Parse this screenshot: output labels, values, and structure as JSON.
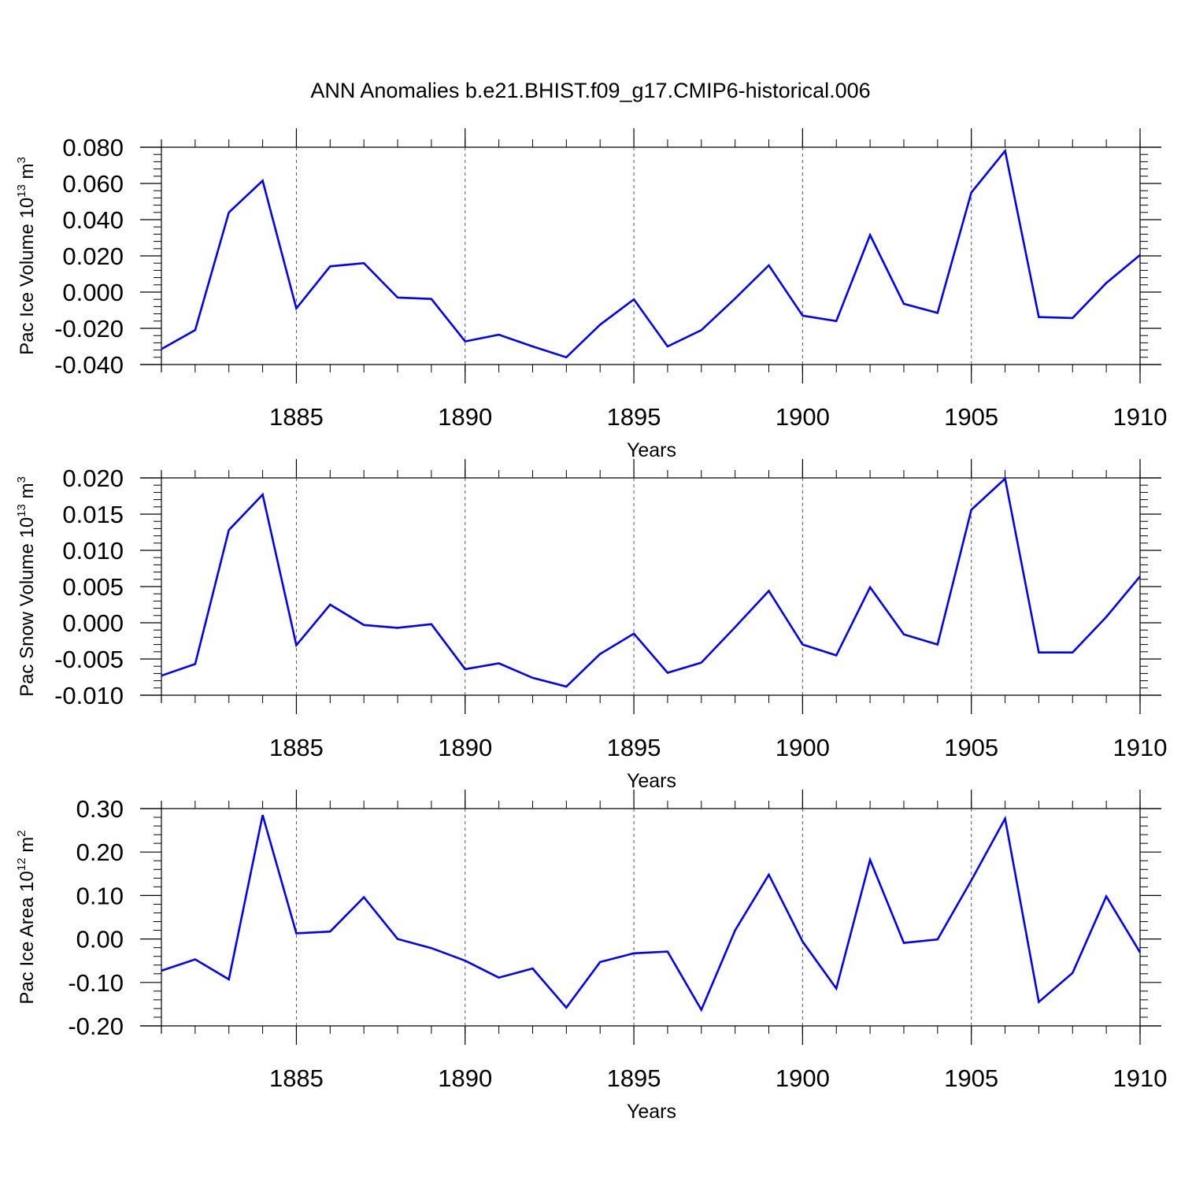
{
  "title": "ANN Anomalies b.e21.BHIST.f09_g17.CMIP6-historical.006",
  "chart_data": [
    {
      "type": "line",
      "ylabel": {
        "main": "Pac Ice Volume 10",
        "exp": "13",
        "unit": " m",
        "unit_exp": "3"
      },
      "xlabel": "Years",
      "xlim": [
        1881,
        1910
      ],
      "ylim": [
        -0.04,
        0.08
      ],
      "yticks": [
        -0.04,
        -0.02,
        0.0,
        0.02,
        0.04,
        0.06,
        0.08
      ],
      "ytick_labels": [
        "-0.040",
        "-0.020",
        "0.000",
        "0.020",
        "0.040",
        "0.060",
        "0.080"
      ],
      "xticks": [
        1885,
        1890,
        1895,
        1900,
        1905,
        1910
      ],
      "xtick_labels": [
        "1885",
        "1890",
        "1895",
        "1900",
        "1905",
        "1910"
      ],
      "line_color": "#0000ff",
      "x": [
        1881,
        1882,
        1883,
        1884,
        1885,
        1886,
        1887,
        1888,
        1889,
        1890,
        1891,
        1892,
        1893,
        1894,
        1895,
        1896,
        1897,
        1898,
        1899,
        1900,
        1901,
        1902,
        1903,
        1904,
        1905,
        1906,
        1907,
        1908,
        1909,
        1910
      ],
      "y": [
        -0.0315,
        -0.021,
        0.044,
        0.0615,
        -0.009,
        0.0142,
        0.016,
        -0.003,
        -0.0038,
        -0.0272,
        -0.0235,
        -0.03,
        -0.036,
        -0.018,
        -0.004,
        -0.03,
        -0.021,
        -0.0035,
        0.0148,
        -0.013,
        -0.016,
        0.0315,
        -0.0065,
        -0.0115,
        0.055,
        0.078,
        -0.0138,
        -0.0143,
        0.005,
        0.0205
      ]
    },
    {
      "type": "line",
      "ylabel": {
        "main": "Pac Snow Volume 10",
        "exp": "13",
        "unit": " m",
        "unit_exp": "3"
      },
      "xlabel": "Years",
      "xlim": [
        1881,
        1910
      ],
      "ylim": [
        -0.01,
        0.02
      ],
      "yticks": [
        -0.01,
        -0.005,
        0.0,
        0.005,
        0.01,
        0.015,
        0.02
      ],
      "ytick_labels": [
        "-0.010",
        "-0.005",
        "0.000",
        "0.005",
        "0.010",
        "0.015",
        "0.020"
      ],
      "xticks": [
        1885,
        1890,
        1895,
        1900,
        1905,
        1910
      ],
      "xtick_labels": [
        "1885",
        "1890",
        "1895",
        "1900",
        "1905",
        "1910"
      ],
      "line_color": "#0000ff",
      "x": [
        1881,
        1882,
        1883,
        1884,
        1885,
        1886,
        1887,
        1888,
        1889,
        1890,
        1891,
        1892,
        1893,
        1894,
        1895,
        1896,
        1897,
        1898,
        1899,
        1900,
        1901,
        1902,
        1903,
        1904,
        1905,
        1906,
        1907,
        1908,
        1909,
        1910
      ],
      "y": [
        -0.0073,
        -0.0057,
        0.0128,
        0.0177,
        -0.0031,
        0.0025,
        -0.0003,
        -0.0007,
        -0.0002,
        -0.0064,
        -0.0056,
        -0.0076,
        -0.0088,
        -0.0043,
        -0.0015,
        -0.0069,
        -0.0055,
        -0.0006,
        0.0044,
        -0.003,
        -0.0045,
        0.0049,
        -0.0016,
        -0.003,
        0.0156,
        0.0199,
        -0.0041,
        -0.0041,
        0.0008,
        0.0064
      ]
    },
    {
      "type": "line",
      "ylabel": {
        "main": "Pac Ice Area 10",
        "exp": "12",
        "unit": " m",
        "unit_exp": "2"
      },
      "xlabel": "Years",
      "xlim": [
        1881,
        1910
      ],
      "ylim": [
        -0.2,
        0.3
      ],
      "yticks": [
        -0.2,
        -0.1,
        0.0,
        0.1,
        0.2,
        0.3
      ],
      "ytick_labels": [
        "-0.20",
        "-0.10",
        "0.00",
        "0.10",
        "0.20",
        "0.30"
      ],
      "xticks": [
        1885,
        1890,
        1895,
        1900,
        1905,
        1910
      ],
      "xtick_labels": [
        "1885",
        "1890",
        "1895",
        "1900",
        "1905",
        "1910"
      ],
      "line_color": "#0000ff",
      "x": [
        1881,
        1882,
        1883,
        1884,
        1885,
        1886,
        1887,
        1888,
        1889,
        1890,
        1891,
        1892,
        1893,
        1894,
        1895,
        1896,
        1897,
        1898,
        1899,
        1900,
        1901,
        1902,
        1903,
        1904,
        1905,
        1906,
        1907,
        1908,
        1909,
        1910
      ],
      "y": [
        -0.073,
        -0.047,
        -0.093,
        0.285,
        0.013,
        0.017,
        0.096,
        0.0,
        -0.021,
        -0.05,
        -0.089,
        -0.068,
        -0.158,
        -0.053,
        -0.033,
        -0.029,
        -0.163,
        0.02,
        0.148,
        -0.006,
        -0.114,
        0.182,
        -0.009,
        -0.001,
        0.135,
        0.277,
        -0.145,
        -0.078,
        0.098,
        -0.031
      ]
    }
  ]
}
